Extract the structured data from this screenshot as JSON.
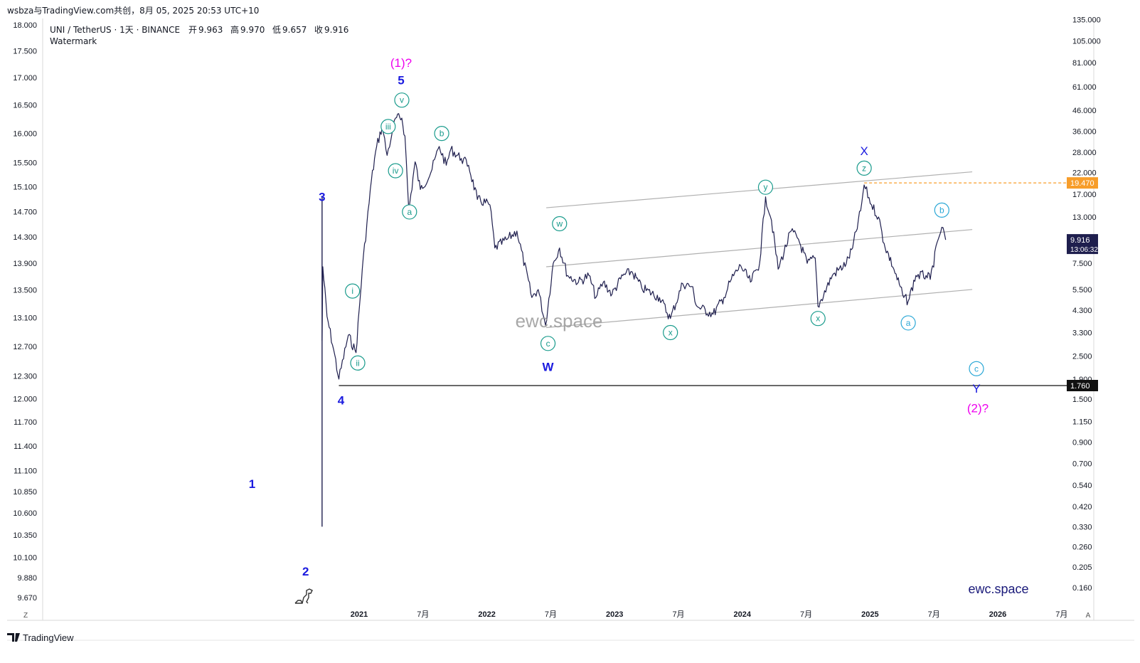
{
  "header": {
    "share_line": "wsbza与TradingView.com共创，8月 05, 2025 20:53 UTC+10",
    "symbol_line": "UNI / TetherUS · 1天 · BINANCE",
    "ohlc": [
      {
        "label": "开",
        "value": "9.963"
      },
      {
        "label": "高",
        "value": "9.970"
      },
      {
        "label": "低",
        "value": "9.657"
      },
      {
        "label": "收",
        "value": "9.916"
      }
    ],
    "watermark_label": "Watermark"
  },
  "footer": {
    "brand": "TradingView",
    "scale_left": "Z",
    "scale_right": "A"
  },
  "site_text_center": "ewc.space",
  "site_text_corner": "ewc.space",
  "colors": {
    "candles": "#1f1f4e",
    "wave_blue": "#1a1adf",
    "wave_magenta": "#ee00ee",
    "wave_teal": "#199b8c",
    "wave_cyan": "#2aa7d6",
    "channel": "#b0b0b0",
    "last_price_bg": "#1f1f4e",
    "resistance": "#f79d2a"
  },
  "chart_data": {
    "type": "candlestick",
    "symbol": "UNI/USDT",
    "exchange": "BINANCE",
    "timeframe": "1D",
    "x_ticks": [
      "2021",
      "7月",
      "2022",
      "7月",
      "2023",
      "7月",
      "2024",
      "7月",
      "2025",
      "7月",
      "2026",
      "7月"
    ],
    "left_axis_ticks": [
      "18.000",
      "17.500",
      "17.000",
      "16.500",
      "16.000",
      "15.500",
      "15.100",
      "14.700",
      "14.300",
      "13.900",
      "13.500",
      "13.100",
      "12.700",
      "12.300",
      "12.000",
      "11.700",
      "11.400",
      "11.100",
      "10.850",
      "10.600",
      "10.350",
      "10.100",
      "9.880",
      "9.670"
    ],
    "right_axis_ticks": [
      "135.000",
      "105.000",
      "81.000",
      "61.000",
      "46.000",
      "36.000",
      "28.000",
      "22.000",
      "17.000",
      "13.000",
      "10.000",
      "7.500",
      "5.500",
      "4.300",
      "3.300",
      "2.500",
      "1.900",
      "1.500",
      "1.150",
      "0.900",
      "0.700",
      "0.540",
      "0.420",
      "0.330",
      "0.260",
      "0.205",
      "0.160"
    ],
    "price_scale": "log",
    "last_price": {
      "value": "9.916",
      "countdown": "13:06:32"
    },
    "horizontal_levels": [
      {
        "value": "19.470",
        "style": "dashed"
      },
      {
        "value": "1.760",
        "style": "solid"
      }
    ],
    "price_path": [
      {
        "date": "2020-09-17",
        "price": 3.0
      },
      {
        "date": "2020-09-19",
        "price": 7.2
      },
      {
        "date": "2020-10-01",
        "price": 4.0
      },
      {
        "date": "2020-10-20",
        "price": 2.7
      },
      {
        "date": "2020-11-04",
        "price": 1.9
      },
      {
        "date": "2020-12-01",
        "price": 3.2
      },
      {
        "date": "2020-12-23",
        "price": 2.6
      },
      {
        "date": "2021-01-10",
        "price": 7.0
      },
      {
        "date": "2021-02-05",
        "price": 20.0
      },
      {
        "date": "2021-02-20",
        "price": 30.0
      },
      {
        "date": "2021-03-08",
        "price": 38.0
      },
      {
        "date": "2021-03-22",
        "price": 27.0
      },
      {
        "date": "2021-04-05",
        "price": 35.0
      },
      {
        "date": "2021-04-15",
        "price": 42.0
      },
      {
        "date": "2021-05-03",
        "price": 42.0
      },
      {
        "date": "2021-05-12",
        "price": 34.0
      },
      {
        "date": "2021-05-23",
        "price": 14.0
      },
      {
        "date": "2021-06-10",
        "price": 25.0
      },
      {
        "date": "2021-06-25",
        "price": 18.0
      },
      {
        "date": "2021-07-25",
        "price": 22.0
      },
      {
        "date": "2021-08-18",
        "price": 30.0
      },
      {
        "date": "2021-09-07",
        "price": 24.0
      },
      {
        "date": "2021-09-20",
        "price": 29.0
      },
      {
        "date": "2021-10-20",
        "price": 26.0
      },
      {
        "date": "2021-11-10",
        "price": 24.0
      },
      {
        "date": "2021-12-05",
        "price": 16.0
      },
      {
        "date": "2022-01-10",
        "price": 15.0
      },
      {
        "date": "2022-01-24",
        "price": 9.0
      },
      {
        "date": "2022-03-01",
        "price": 10.0
      },
      {
        "date": "2022-03-28",
        "price": 11.0
      },
      {
        "date": "2022-05-10",
        "price": 5.0
      },
      {
        "date": "2022-05-28",
        "price": 5.5
      },
      {
        "date": "2022-06-18",
        "price": 3.6
      },
      {
        "date": "2022-07-10",
        "price": 7.5
      },
      {
        "date": "2022-07-28",
        "price": 9.0
      },
      {
        "date": "2022-08-20",
        "price": 6.5
      },
      {
        "date": "2022-09-20",
        "price": 6.0
      },
      {
        "date": "2022-10-20",
        "price": 6.5
      },
      {
        "date": "2022-11-09",
        "price": 5.0
      },
      {
        "date": "2022-11-30",
        "price": 6.0
      },
      {
        "date": "2022-12-25",
        "price": 5.2
      },
      {
        "date": "2023-01-25",
        "price": 6.5
      },
      {
        "date": "2023-02-20",
        "price": 6.8
      },
      {
        "date": "2023-03-20",
        "price": 5.6
      },
      {
        "date": "2023-05-10",
        "price": 5.0
      },
      {
        "date": "2023-06-10",
        "price": 3.9
      },
      {
        "date": "2023-07-15",
        "price": 5.9
      },
      {
        "date": "2023-08-10",
        "price": 5.7
      },
      {
        "date": "2023-08-25",
        "price": 4.5
      },
      {
        "date": "2023-10-10",
        "price": 4.1
      },
      {
        "date": "2023-11-10",
        "price": 5.0
      },
      {
        "date": "2023-12-01",
        "price": 6.2
      },
      {
        "date": "2023-12-28",
        "price": 7.3
      },
      {
        "date": "2024-01-25",
        "price": 6.0
      },
      {
        "date": "2024-02-20",
        "price": 7.5
      },
      {
        "date": "2024-03-08",
        "price": 16.5
      },
      {
        "date": "2024-03-25",
        "price": 12.5
      },
      {
        "date": "2024-04-13",
        "price": 7.0
      },
      {
        "date": "2024-05-20",
        "price": 11.0
      },
      {
        "date": "2024-06-10",
        "price": 10.0
      },
      {
        "date": "2024-07-05",
        "price": 7.5
      },
      {
        "date": "2024-07-28",
        "price": 8.0
      },
      {
        "date": "2024-08-05",
        "price": 4.5
      },
      {
        "date": "2024-09-15",
        "price": 6.5
      },
      {
        "date": "2024-10-25",
        "price": 7.5
      },
      {
        "date": "2024-11-12",
        "price": 9.0
      },
      {
        "date": "2024-12-05",
        "price": 14.0
      },
      {
        "date": "2024-12-15",
        "price": 19.0
      },
      {
        "date": "2025-01-05",
        "price": 15.0
      },
      {
        "date": "2025-01-25",
        "price": 13.0
      },
      {
        "date": "2025-02-10",
        "price": 9.5
      },
      {
        "date": "2025-03-10",
        "price": 7.0
      },
      {
        "date": "2025-04-07",
        "price": 5.0
      },
      {
        "date": "2025-04-20",
        "price": 4.8
      },
      {
        "date": "2025-05-12",
        "price": 6.5
      },
      {
        "date": "2025-06-10",
        "price": 6.5
      },
      {
        "date": "2025-06-22",
        "price": 6.2
      },
      {
        "date": "2025-07-15",
        "price": 10.0
      },
      {
        "date": "2025-07-25",
        "price": 11.5
      },
      {
        "date": "2025-08-05",
        "price": 9.916
      }
    ],
    "wave_labels": [
      {
        "text": "(1)?",
        "date": "2021-05-01",
        "price": 81,
        "color": "magenta"
      },
      {
        "text": "5",
        "date": "2021-05-01",
        "price": 66,
        "color": "blue",
        "bold": true
      },
      {
        "text": "v",
        "date": "2021-05-03",
        "price": 52,
        "color": "teal",
        "circle": true
      },
      {
        "text": "iii",
        "date": "2021-03-25",
        "price": 38,
        "color": "teal",
        "circle": true
      },
      {
        "text": "iv",
        "date": "2021-04-15",
        "price": 22.5,
        "color": "teal",
        "circle": true
      },
      {
        "text": "a",
        "date": "2021-05-25",
        "price": 13.8,
        "color": "teal",
        "circle": true
      },
      {
        "text": "b",
        "date": "2021-08-25",
        "price": 35,
        "color": "teal",
        "circle": true
      },
      {
        "text": "3",
        "date": "2020-09-17",
        "price": 16.5,
        "color": "blue",
        "bold": true
      },
      {
        "text": "i",
        "date": "2020-12-13",
        "price": 5.4,
        "color": "teal",
        "circle": true
      },
      {
        "text": "ii",
        "date": "2020-12-28",
        "price": 2.3,
        "color": "teal",
        "circle": true
      },
      {
        "text": "4",
        "date": "2020-11-10",
        "price": 1.48,
        "color": "blue",
        "bold": true
      },
      {
        "text": "1",
        "date": "2020-03-01",
        "price": 0.55,
        "color": "blue",
        "bold": true
      },
      {
        "text": "2",
        "date": "2020-08-01",
        "price": 0.195,
        "color": "blue",
        "bold": true
      },
      {
        "text": "w",
        "date": "2022-07-28",
        "price": 12,
        "color": "teal",
        "circle": true
      },
      {
        "text": "c",
        "date": "2022-06-25",
        "price": 2.9,
        "color": "teal",
        "circle": true
      },
      {
        "text": "W",
        "date": "2022-06-25",
        "price": 2.2,
        "color": "blue",
        "bold": true
      },
      {
        "text": "x",
        "date": "2023-06-10",
        "price": 3.3,
        "color": "teal",
        "circle": true
      },
      {
        "text": "y",
        "date": "2024-03-08",
        "price": 18.5,
        "color": "teal",
        "circle": true
      },
      {
        "text": "x",
        "date": "2024-08-05",
        "price": 3.9,
        "color": "teal",
        "circle": true
      },
      {
        "text": "z",
        "date": "2024-12-15",
        "price": 23.2,
        "color": "teal",
        "circle": true
      },
      {
        "text": "X",
        "date": "2024-12-15",
        "price": 28.5,
        "color": "blue"
      },
      {
        "text": "a",
        "date": "2025-04-20",
        "price": 3.7,
        "color": "cyan",
        "circle": true
      },
      {
        "text": "b",
        "date": "2025-07-25",
        "price": 14.1,
        "color": "cyan",
        "circle": true
      },
      {
        "text": "c",
        "date": "2025-11-01",
        "price": 2.15,
        "color": "cyan",
        "circle": true
      },
      {
        "text": "Y",
        "date": "2025-11-01",
        "price": 1.7,
        "color": "blue"
      },
      {
        "text": "(2)?",
        "date": "2025-11-05",
        "price": 1.35,
        "color": "magenta"
      }
    ],
    "channel_lines": [
      {
        "from": {
          "date": "2022-06-20",
          "price": 3.5
        },
        "to": {
          "date": "2025-10-20",
          "price": 5.5
        }
      },
      {
        "from": {
          "date": "2022-06-20",
          "price": 7.2
        },
        "to": {
          "date": "2025-10-20",
          "price": 11.2
        }
      },
      {
        "from": {
          "date": "2022-06-20",
          "price": 14.5
        },
        "to": {
          "date": "2025-10-20",
          "price": 22.2
        }
      }
    ],
    "vertical_lines": [
      {
        "date": "2020-09-17",
        "from_price": 0.33,
        "to_price": 16.5
      }
    ]
  }
}
